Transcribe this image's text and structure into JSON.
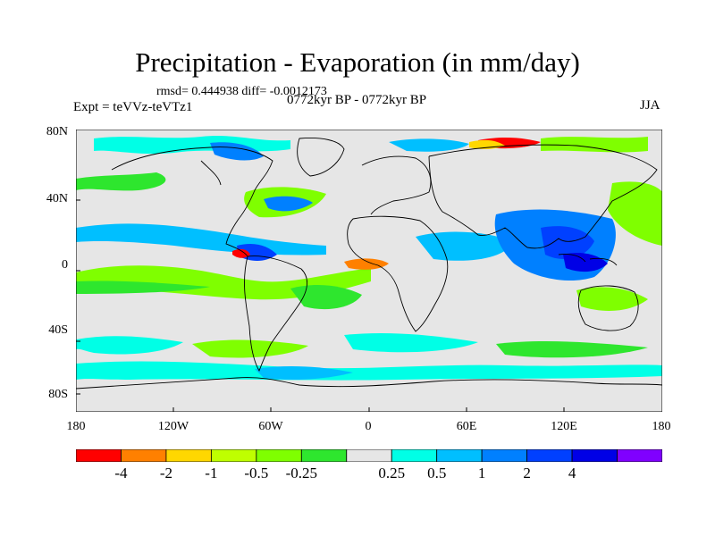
{
  "title": "Precipitation - Evaporation (in mm/day)",
  "stats": "rmsd= 0.444938 diff= -0.0012173",
  "experiment": "Expt = teVVz-teVTz1",
  "period": "0772kyr BP - 0772kyr BP",
  "season": "JJA",
  "map": {
    "lat_labels": [
      "80N",
      "40N",
      "0",
      "40S",
      "80S"
    ],
    "lon_labels": [
      "180",
      "120W",
      "60W",
      "0",
      "60E",
      "120E",
      "180"
    ],
    "background_color": "#e6e6e6",
    "coastline_color": "#000000"
  },
  "colorbar": {
    "colors": [
      "#ff0000",
      "#ff8000",
      "#ffd700",
      "#bfff00",
      "#7fff00",
      "#2ee62e",
      "#e6e6e6",
      "#00ffe6",
      "#00bfff",
      "#0080ff",
      "#0040ff",
      "#0000e6",
      "#8000ff"
    ],
    "labels": [
      "-4",
      "-2",
      "-1",
      "-0.5",
      "-0.25",
      "0.25",
      "0.5",
      "1",
      "2",
      "4"
    ]
  }
}
